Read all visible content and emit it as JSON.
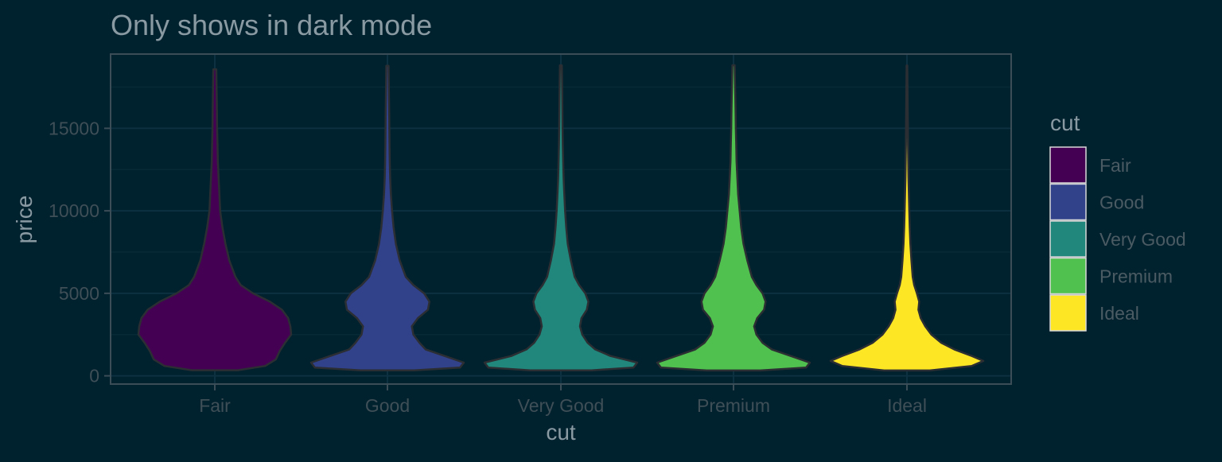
{
  "chart_data": {
    "type": "violin",
    "title": "Only shows in dark mode",
    "xlabel": "cut",
    "ylabel": "price",
    "categories": [
      "Fair",
      "Good",
      "Very Good",
      "Premium",
      "Ideal"
    ],
    "ylim": [
      -500,
      19500
    ],
    "yticks": [
      0,
      5000,
      10000,
      15000
    ],
    "ytick_labels": [
      "0",
      "5000",
      "10000",
      "15000"
    ],
    "grid": true,
    "legend": {
      "title": "cut",
      "position": "right"
    },
    "colors": {
      "background": "#00212e",
      "panel_border": "#3b4d57",
      "grid_major": "#0d3140",
      "grid_minor": "#072a37",
      "title_text": "#8a9aa3",
      "axis_title_text": "#8a9aa3",
      "tick_text": "#3f4f57",
      "legend_label_text": "#4b5b63",
      "violin_outline": "#2b2f33"
    },
    "series": [
      {
        "name": "Fair",
        "color": "#440154",
        "range": [
          337,
          18574
        ],
        "density": [
          [
            337,
            0.3
          ],
          [
            600,
            0.66
          ],
          [
            1000,
            0.8
          ],
          [
            1500,
            0.85
          ],
          [
            2000,
            0.92
          ],
          [
            2500,
            1.0
          ],
          [
            3000,
            0.99
          ],
          [
            3500,
            0.96
          ],
          [
            4000,
            0.88
          ],
          [
            4500,
            0.72
          ],
          [
            5000,
            0.5
          ],
          [
            5500,
            0.34
          ],
          [
            6000,
            0.27
          ],
          [
            7000,
            0.19
          ],
          [
            8000,
            0.14
          ],
          [
            9000,
            0.1
          ],
          [
            10000,
            0.07
          ],
          [
            11000,
            0.06
          ],
          [
            12000,
            0.05
          ],
          [
            13000,
            0.04
          ],
          [
            14000,
            0.035
          ],
          [
            15000,
            0.03
          ],
          [
            16000,
            0.028
          ],
          [
            17000,
            0.025
          ],
          [
            18574,
            0.02
          ]
        ]
      },
      {
        "name": "Good",
        "color": "#31418a",
        "range": [
          327,
          18788
        ],
        "density": [
          [
            327,
            0.35
          ],
          [
            500,
            0.95
          ],
          [
            800,
            1.0
          ],
          [
            1200,
            0.75
          ],
          [
            1600,
            0.5
          ],
          [
            2000,
            0.42
          ],
          [
            2500,
            0.34
          ],
          [
            3000,
            0.32
          ],
          [
            3500,
            0.4
          ],
          [
            4000,
            0.53
          ],
          [
            4500,
            0.55
          ],
          [
            5000,
            0.48
          ],
          [
            5500,
            0.34
          ],
          [
            6000,
            0.24
          ],
          [
            7000,
            0.16
          ],
          [
            8000,
            0.11
          ],
          [
            9000,
            0.08
          ],
          [
            10000,
            0.06
          ],
          [
            11000,
            0.045
          ],
          [
            12000,
            0.035
          ],
          [
            13000,
            0.03
          ],
          [
            14000,
            0.027
          ],
          [
            15000,
            0.025
          ],
          [
            16000,
            0.023
          ],
          [
            17000,
            0.02
          ],
          [
            18788,
            0.015
          ]
        ]
      },
      {
        "name": "Very Good",
        "color": "#21877c",
        "range": [
          336,
          18818
        ],
        "density": [
          [
            336,
            0.4
          ],
          [
            500,
            0.95
          ],
          [
            800,
            1.0
          ],
          [
            1200,
            0.65
          ],
          [
            1600,
            0.45
          ],
          [
            2000,
            0.35
          ],
          [
            2500,
            0.28
          ],
          [
            3000,
            0.25
          ],
          [
            3500,
            0.27
          ],
          [
            4000,
            0.34
          ],
          [
            4500,
            0.36
          ],
          [
            5000,
            0.32
          ],
          [
            5500,
            0.24
          ],
          [
            6000,
            0.18
          ],
          [
            7000,
            0.13
          ],
          [
            8000,
            0.09
          ],
          [
            9000,
            0.07
          ],
          [
            10000,
            0.055
          ],
          [
            11000,
            0.045
          ],
          [
            12000,
            0.035
          ],
          [
            13000,
            0.03
          ],
          [
            14000,
            0.025
          ],
          [
            15000,
            0.022
          ],
          [
            16000,
            0.02
          ],
          [
            17000,
            0.018
          ],
          [
            18818,
            0.012
          ]
        ]
      },
      {
        "name": "Premium",
        "color": "#50c14f",
        "range": [
          326,
          18823
        ],
        "density": [
          [
            326,
            0.35
          ],
          [
            500,
            0.95
          ],
          [
            800,
            1.0
          ],
          [
            1200,
            0.75
          ],
          [
            1600,
            0.5
          ],
          [
            2000,
            0.38
          ],
          [
            2500,
            0.3
          ],
          [
            3000,
            0.27
          ],
          [
            3500,
            0.31
          ],
          [
            4000,
            0.4
          ],
          [
            4500,
            0.42
          ],
          [
            5000,
            0.38
          ],
          [
            5500,
            0.3
          ],
          [
            6000,
            0.24
          ],
          [
            7000,
            0.18
          ],
          [
            8000,
            0.13
          ],
          [
            9000,
            0.1
          ],
          [
            10000,
            0.08
          ],
          [
            11000,
            0.06
          ],
          [
            12000,
            0.05
          ],
          [
            13000,
            0.04
          ],
          [
            14000,
            0.035
          ],
          [
            15000,
            0.03
          ],
          [
            16000,
            0.027
          ],
          [
            17000,
            0.023
          ],
          [
            18823,
            0.015
          ]
        ]
      },
      {
        "name": "Ideal",
        "color": "#fde725",
        "range": [
          326,
          18806
        ],
        "density": [
          [
            326,
            0.3
          ],
          [
            600,
            0.85
          ],
          [
            900,
            1.0
          ],
          [
            1200,
            0.85
          ],
          [
            1600,
            0.62
          ],
          [
            2000,
            0.45
          ],
          [
            2500,
            0.32
          ],
          [
            3000,
            0.24
          ],
          [
            3500,
            0.18
          ],
          [
            4000,
            0.15
          ],
          [
            4500,
            0.16
          ],
          [
            5000,
            0.13
          ],
          [
            5500,
            0.095
          ],
          [
            6000,
            0.075
          ],
          [
            7000,
            0.058
          ],
          [
            8000,
            0.045
          ],
          [
            9000,
            0.036
          ],
          [
            10000,
            0.03
          ],
          [
            11000,
            0.025
          ],
          [
            12000,
            0.02
          ],
          [
            13000,
            0.017
          ],
          [
            14000,
            0.014
          ],
          [
            15000,
            0.012
          ],
          [
            16000,
            0.01
          ],
          [
            17000,
            0.008
          ],
          [
            18806,
            0.004
          ]
        ]
      }
    ]
  }
}
